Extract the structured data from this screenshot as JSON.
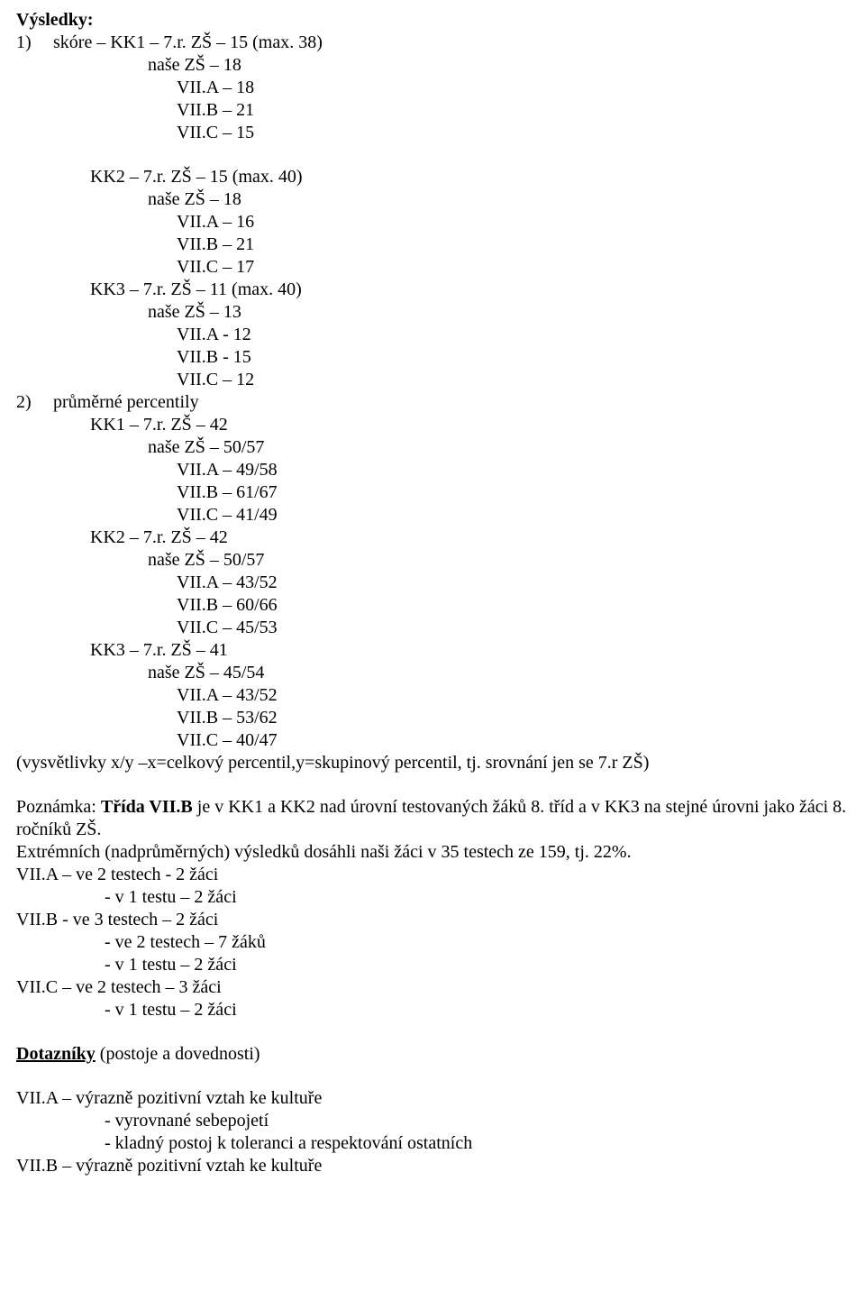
{
  "heading_vysledky": "Výsledky:",
  "item1": {
    "num": "1)",
    "line1": "skóre – KK1 – 7.r.  ZŠ – 15 (max. 38)",
    "nase1": "naše ZŠ – 18",
    "a1": "VII.A – 18",
    "b1": "VII.B – 21",
    "c1": "VII.C – 15",
    "kk2_line": "KK2 – 7.r. ZŠ – 15 (max. 40)",
    "nase2": "naše ZŠ – 18",
    "a2": "VII.A – 16",
    "b2": "VII.B –  21",
    "c2": "VII.C – 17",
    "kk3_line": "KK3 – 7.r. ZŠ – 11 (max. 40)",
    "nase3": "naše ZŠ – 13",
    "a3": "VII.A - 12",
    "b3": "VII.B - 15",
    "c3": "VII.C – 12"
  },
  "item2": {
    "num": "2)",
    "line1": "průměrné percentily",
    "kk1": "KK1 – 7.r. ZŠ – 42",
    "nase1": "naše ZŠ – 50/57",
    "a1": "VII.A – 49/58",
    "b1": "VII.B – 61/67",
    "c1": "VII.C – 41/49",
    "kk2": "KK2 – 7.r. ZŠ – 42",
    "nase2": "naše ZŠ – 50/57",
    "a2": "VII.A – 43/52",
    "b2": "VII.B – 60/66",
    "c2": "VII.C – 45/53",
    "kk3": "KK3 – 7.r. ZŠ – 41",
    "nase3": "naše ZŠ – 45/54",
    "a3": "VII.A – 43/52",
    "b3": "VII.B – 53/62",
    "c3": "VII.C – 40/47"
  },
  "legend": "(vysvětlivky x/y –x=celkový percentil,y=skupinový percentil, tj. srovnání jen se 7.r ZŠ)",
  "poznamka": {
    "label": "Poznámka: ",
    "bold_part": "Třída VII.B",
    "rest": " je v KK1 a KK2 nad úrovní testovaných žáků 8. tříd a v KK3 na stejné úrovni jako žáci 8. ročníků ZŠ.",
    "line2": "Extrémních (nadprůměrných) výsledků dosáhli naši žáci v 35 testech ze 159, tj. 22%."
  },
  "extremes": {
    "a1": "VII.A – ve 2 testech -  2 žáci",
    "a2": "- v 1 testu – 2 žáci",
    "b1": "VII.B -  ve 3 testech – 2 žáci",
    "b2": "- ve 2 testech – 7 žáků",
    "b3": "- v 1 testu – 2 žáci",
    "c1": "VII.C – ve 2 testech – 3 žáci",
    "c2": "- v 1 testu – 2 žáci"
  },
  "dotazniky_heading": "Dotazníky",
  "dotazniky_rest": " (postoje a dovednosti)",
  "attitudes": {
    "a1": "VII.A – výrazně pozitivní vztah ke kultuře",
    "a2": "- vyrovnané sebepojetí",
    "a3": "- kladný postoj k toleranci a respektování ostatních",
    "b1": "VII.B – výrazně pozitivní vztah ke kultuře"
  }
}
